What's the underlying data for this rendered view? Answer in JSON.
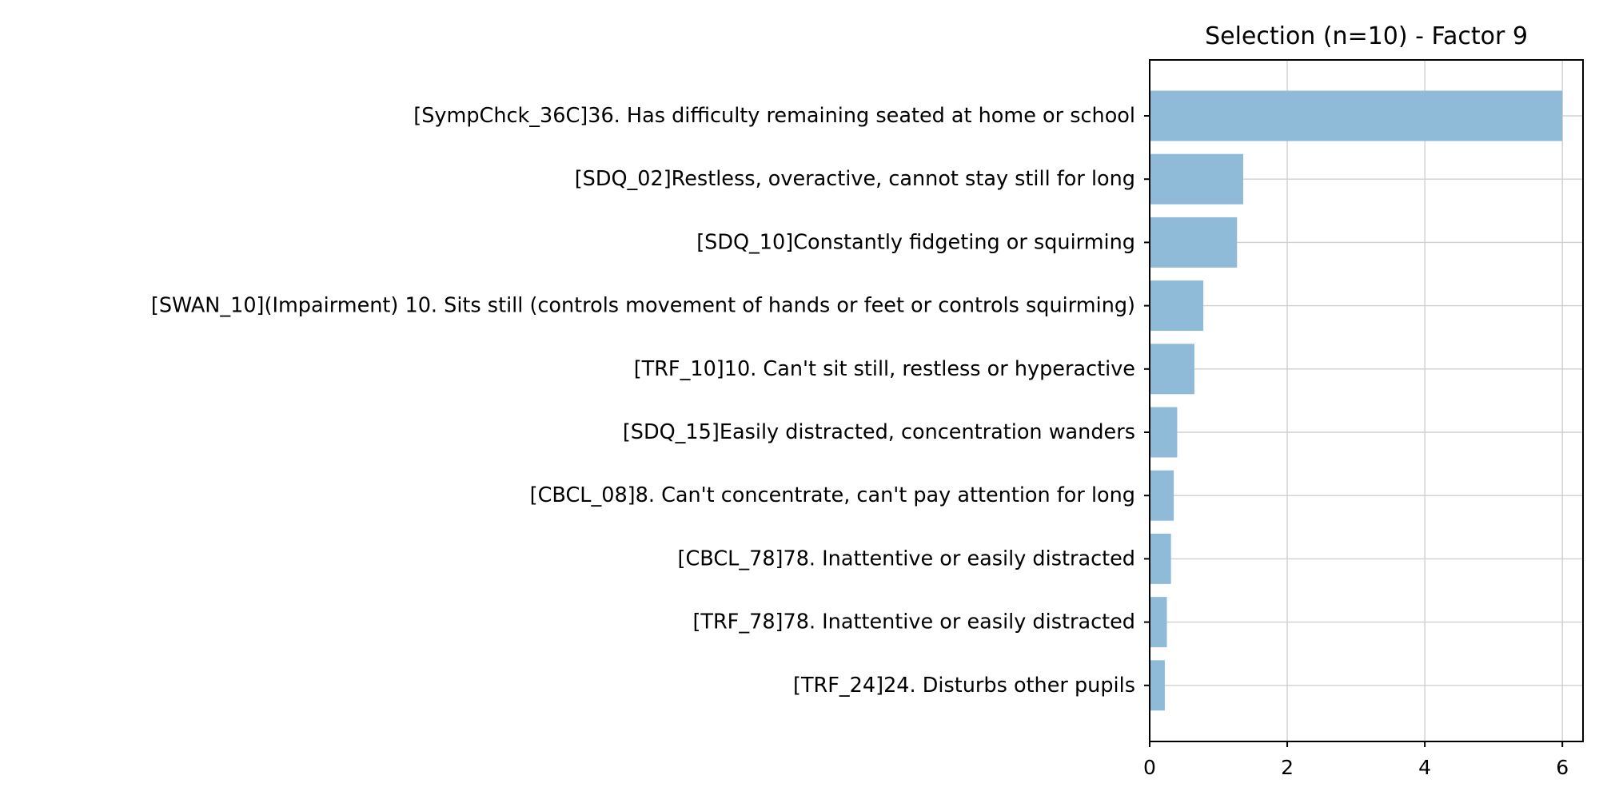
{
  "chart_data": {
    "type": "bar",
    "orientation": "horizontal",
    "title": "Selection (n=10) - Factor 9",
    "xlabel": "",
    "ylabel": "",
    "categories": [
      "[SympChck_36C]36. Has difficulty remaining seated at home or school",
      "[SDQ_02]Restless, overactive, cannot stay still for long",
      "[SDQ_10]Constantly fidgeting or squirming",
      "[SWAN_10](Impairment) 10. Sits still (controls movement of hands or feet or controls squirming)",
      "[TRF_10]10. Can't sit still, restless or hyperactive",
      "[SDQ_15]Easily distracted, concentration wanders",
      "[CBCL_08]8. Can't concentrate, can't pay attention for long",
      "[CBCL_78]78. Inattentive or easily distracted",
      "[TRF_78]78. Inattentive or easily distracted",
      "[TRF_24]24. Disturbs other pupils"
    ],
    "values": [
      6.0,
      1.36,
      1.27,
      0.78,
      0.65,
      0.4,
      0.35,
      0.31,
      0.25,
      0.22
    ],
    "xlim": [
      0,
      6.3
    ],
    "xticks": [
      0,
      2,
      4,
      6
    ],
    "grid": true,
    "bar_color": "#8fbbd9"
  }
}
